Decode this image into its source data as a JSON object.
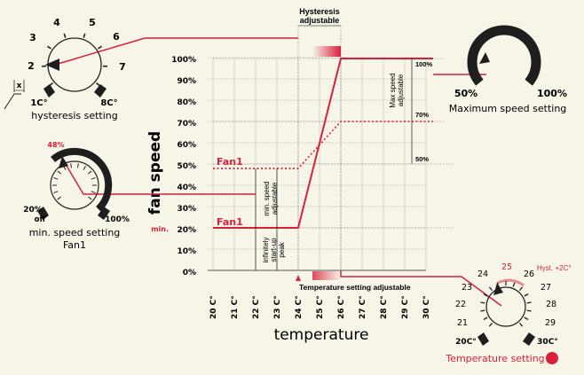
{
  "title_top": [
    "Hysteresis",
    "adjustable"
  ],
  "axes": {
    "y_label": "fan speed",
    "x_label": "temperature",
    "y_ticks": [
      "100%",
      "90%",
      "80%",
      "70%",
      "60%",
      "50%",
      "40%",
      "30%",
      "20%",
      "10%",
      "0%"
    ],
    "x_ticks": [
      "20 C°",
      "21 C°",
      "22 C°",
      "23 C°",
      "24 C°",
      "25 C°",
      "26 C°",
      "27 C°",
      "28 C°",
      "29 C°",
      "30 C°"
    ],
    "min_label": "min."
  },
  "chart_labels": {
    "fan1_upper": "Fan1",
    "fan1_lower": "Fan1",
    "min_speed_adjustable": [
      "min. speed",
      "adjustable"
    ],
    "start_up_peak": [
      "infinitely",
      "start-up",
      "peak"
    ],
    "max_speed_adjustable": [
      "Max speed",
      "adjustable"
    ],
    "pct_100": "100%",
    "pct_70": "70%",
    "pct_50": "50%",
    "temp_setting_adjustable": "Temperature setting adjustable"
  },
  "hysteresis_dial": {
    "numbers": [
      "1",
      "2",
      "3",
      "4",
      "5",
      "6",
      "7"
    ],
    "low": "1C°",
    "high": "8C°",
    "caption": "hysteresis setting",
    "x_mark": "x"
  },
  "min_speed_dial": {
    "pointer_value": "48%",
    "low": "20%",
    "low_sub": "off",
    "high": "100%",
    "caption": [
      "min. speed setting",
      "Fan1"
    ]
  },
  "max_speed_dial": {
    "low": "50%",
    "high": "100%",
    "caption": "Maximum speed setting"
  },
  "temp_dial": {
    "numbers": [
      "21",
      "22",
      "23",
      "24",
      "25",
      "26",
      "27",
      "28",
      "29"
    ],
    "hyst": "Hyst. +2C°",
    "low": "20C°",
    "high": "30C°",
    "caption": "Temperature setting"
  },
  "colors": {
    "accent": "#d9203a",
    "dark": "#1e1e1e",
    "background": "#f6f5e8"
  }
}
